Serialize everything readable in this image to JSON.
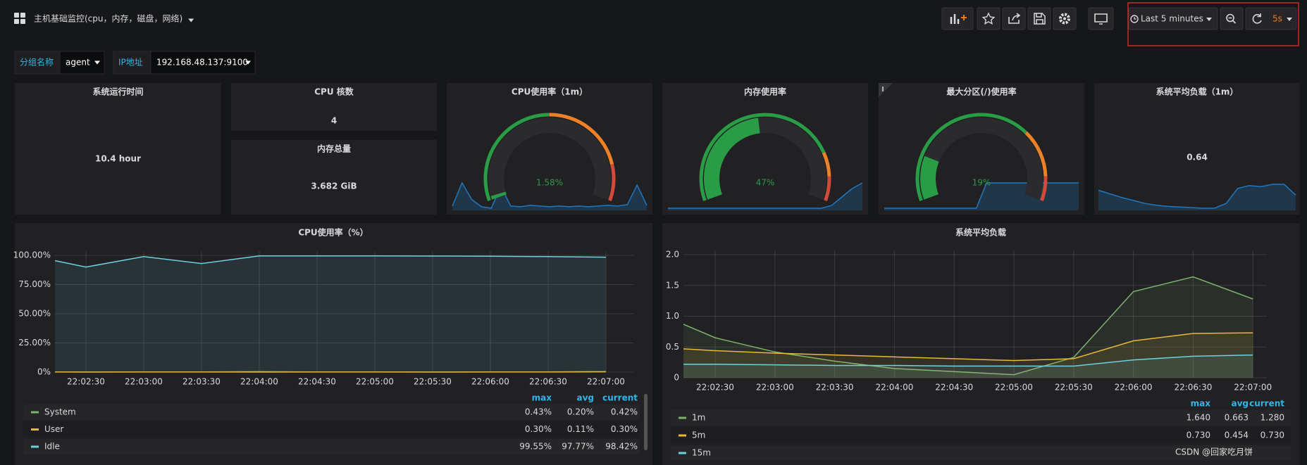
{
  "header": {
    "title": "主机基础监控(cpu，内存，磁盘，网络)",
    "time_range": "Last 5 minutes",
    "refresh": "5s"
  },
  "variables": [
    {
      "label": "分组名称",
      "value": "agent"
    },
    {
      "label": "IP地址",
      "value": "192.168.48.137:9100"
    }
  ],
  "stats": [
    {
      "title": "系统运行时间",
      "value": "10.4 hour"
    },
    {
      "title": "CPU 核数",
      "value": "4"
    },
    {
      "title": "内存总量",
      "value": "3.682 GiB"
    },
    {
      "title": "系统平均负载（1m）",
      "value": "0.64",
      "sparkline": [
        0.72,
        0.66,
        0.6,
        0.55,
        0.5,
        0.47,
        0.45,
        0.44,
        0.43,
        0.42,
        0.42,
        0.5,
        0.75,
        0.8,
        0.78,
        0.82,
        0.82,
        0.64
      ]
    }
  ],
  "gauges": [
    {
      "title": "CPU使用率（1m）",
      "value": 1.58,
      "value_label": "1.58%",
      "range": [
        0,
        100
      ],
      "thresholds": [
        50,
        85
      ],
      "sparkline": [
        1.3,
        4.5,
        2.2,
        1.2,
        1.0,
        4,
        1.3,
        1.2,
        1.4,
        1.3,
        1.2,
        1.3,
        1.2,
        1.3,
        1.2,
        1.3,
        1.4,
        1.3,
        1.5,
        4.2,
        1.4
      ]
    },
    {
      "title": "内存使用率",
      "value": 47,
      "value_label": "47%",
      "range": [
        0,
        100
      ],
      "thresholds": [
        80,
        90
      ],
      "sparkline": [
        46.8,
        46.8,
        46.8,
        46.8,
        46.8,
        46.8,
        46.8,
        46.8,
        46.8,
        46.8,
        46.8,
        46.8,
        46.8,
        46.8,
        46.8,
        46.8,
        47,
        47.6,
        48.2,
        48.6
      ]
    },
    {
      "title": "最大分区(/)使用率",
      "value": 19,
      "value_label": "19%",
      "range": [
        0,
        100
      ],
      "thresholds": [
        70,
        90
      ],
      "sparkline": [
        18.8,
        18.8,
        18.8,
        18.8,
        18.8,
        18.8,
        18.8,
        18.8,
        18.8,
        18.8,
        19.3,
        19.3,
        19.3,
        19.3,
        19.3,
        19.3,
        19.3,
        19.3,
        19.3,
        19.3
      ]
    }
  ],
  "chart_data": [
    {
      "type": "line",
      "title": "CPU使用率（%）",
      "categories": [
        null,
        "22:02:30",
        "22:03:00",
        "22:03:30",
        "22:04:00",
        "22:04:30",
        "22:05:00",
        "22:05:30",
        "22:06:00",
        "22:06:30",
        "22:07:00"
      ],
      "ylim": [
        0,
        100
      ],
      "yticks": [
        {
          "value": 0,
          "label": "0%"
        },
        {
          "value": 25,
          "label": "25.00%"
        },
        {
          "value": 50,
          "label": "50.00%"
        },
        {
          "value": 75,
          "label": "75.00%"
        },
        {
          "value": 100,
          "label": "100.00%"
        }
      ],
      "grid": true,
      "legend_columns": [
        "max",
        "avg",
        "current"
      ],
      "series": [
        {
          "name": "System",
          "color": "#7eb26d",
          "values": [
            0.2,
            0.15,
            0.1,
            0.2,
            0.43,
            0.2,
            0.2,
            0.15,
            0.2,
            0.2,
            0.42
          ],
          "legend_values": [
            "0.43%",
            "0.20%",
            "0.42%"
          ]
        },
        {
          "name": "User",
          "color": "#eab839",
          "values": [
            0.1,
            0.05,
            0.1,
            0.1,
            0.08,
            0.1,
            0.1,
            0.05,
            0.1,
            0.1,
            0.3
          ],
          "legend_values": [
            "0.30%",
            "0.11%",
            "0.30%"
          ]
        },
        {
          "name": "Idle",
          "color": "#6ed0e0",
          "values": [
            95.5,
            90,
            99,
            93,
            99.55,
            99.5,
            99.5,
            99.4,
            99.3,
            98.9,
            98.42
          ],
          "legend_values": [
            "99.55%",
            "97.77%",
            "98.42%"
          ]
        }
      ]
    },
    {
      "type": "line",
      "title": "系统平均负载",
      "categories": [
        null,
        "22:02:30",
        "22:03:00",
        "22:03:30",
        "22:04:00",
        "22:04:30",
        "22:05:00",
        "22:05:30",
        "22:06:00",
        "22:06:30",
        "22:07:00"
      ],
      "ylim": [
        0,
        2
      ],
      "yticks": [
        0,
        0.5,
        {
          "value": 1,
          "label": "1.0"
        },
        1.5,
        {
          "value": 2,
          "label": "2.0"
        }
      ],
      "grid": true,
      "legend_columns": [
        "max",
        "avg",
        "current"
      ],
      "series": [
        {
          "name": "1m",
          "color": "#7eb26d",
          "values": [
            0.87,
            0.65,
            0.42,
            0.27,
            0.15,
            0.1,
            0.05,
            0.33,
            1.4,
            1.64,
            1.28
          ],
          "legend_values": [
            "1.640",
            "0.663",
            "1.280"
          ]
        },
        {
          "name": "5m",
          "color": "#eab839",
          "values": [
            0.47,
            0.44,
            0.4,
            0.37,
            0.34,
            0.31,
            0.28,
            0.31,
            0.6,
            0.72,
            0.73
          ],
          "legend_values": [
            "0.730",
            "0.454",
            "0.730"
          ]
        },
        {
          "name": "15m",
          "color": "#6ed0e0",
          "values": [
            0.22,
            0.22,
            0.21,
            0.2,
            0.2,
            0.19,
            0.19,
            0.19,
            0.29,
            0.35,
            0.37
          ]
        }
      ]
    }
  ],
  "watermark": "CSDN @回家吃月饼"
}
